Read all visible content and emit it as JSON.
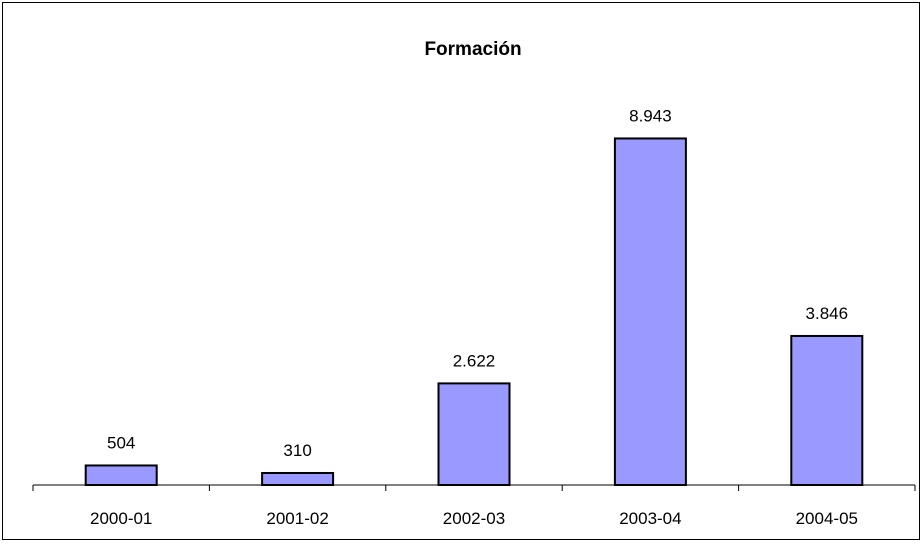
{
  "chart_data": {
    "type": "bar",
    "title": "Formación",
    "categories": [
      "2000-01",
      "2001-02",
      "2002-03",
      "2003-04",
      "2004-05"
    ],
    "values": [
      504,
      310,
      2622,
      8943,
      3846
    ],
    "value_labels": [
      "504",
      "310",
      "2.622",
      "8.943",
      "3.846"
    ],
    "xlabel": "",
    "ylabel": "",
    "ylim": [
      0,
      10000
    ],
    "grid": false,
    "legend": "none",
    "bar_color": "#9999FF",
    "bar_edge_color": "#000000"
  }
}
